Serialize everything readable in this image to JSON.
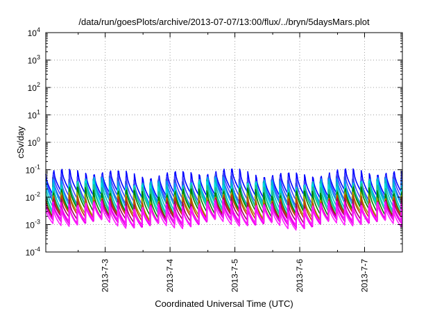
{
  "chart_data": {
    "type": "line",
    "title": "/data/run/goesPlots/archive/2013-07-07/13:00/flux/../bryn/5daysMars.plot",
    "xlabel": "Coordinated Universal Time (UTC)",
    "ylabel": "cSv/day",
    "yscale": "log",
    "ylim": [
      0.0001,
      10000
    ],
    "xlim": [
      "2013-07-02 02:00",
      "2013-07-07 14:00"
    ],
    "y_ticks": [
      {
        "value": 0.0001,
        "base": "10",
        "exp": "-4"
      },
      {
        "value": 0.001,
        "base": "10",
        "exp": "-3"
      },
      {
        "value": 0.01,
        "base": "10",
        "exp": "-2"
      },
      {
        "value": 0.1,
        "base": "10",
        "exp": "-1"
      },
      {
        "value": 1,
        "base": "10",
        "exp": "0"
      },
      {
        "value": 10,
        "base": "10",
        "exp": "1"
      },
      {
        "value": 100,
        "base": "10",
        "exp": "2"
      },
      {
        "value": 1000,
        "base": "10",
        "exp": "3"
      },
      {
        "value": 10000,
        "base": "10",
        "exp": "4"
      }
    ],
    "x_ticks": [
      {
        "value": "2013-07-03 00:00",
        "label": "2013-7-3"
      },
      {
        "value": "2013-07-04 00:00",
        "label": "2013-7-4"
      },
      {
        "value": "2013-07-05 00:00",
        "label": "2013-7-5"
      },
      {
        "value": "2013-07-06 00:00",
        "label": "2013-7-6"
      },
      {
        "value": "2013-07-07 00:00",
        "label": "2013-7-7"
      }
    ],
    "grid": true,
    "legend": "none",
    "pattern": {
      "cycle_hours": 3.0,
      "peak_values": [
        0.07,
        0.05,
        0.04,
        0.035,
        0.03,
        0.025,
        0.02,
        0.015,
        0.01,
        0.008,
        0.006,
        0.005,
        0.0045,
        0.004
      ],
      "trough_values": [
        0.012,
        0.008,
        0.006,
        0.005,
        0.004,
        0.0035,
        0.003,
        0.0025,
        0.002,
        0.0017,
        0.0014,
        0.0012,
        0.0011,
        0.001
      ]
    },
    "series": [
      {
        "color": "#0000ff"
      },
      {
        "color": "#4040ff"
      },
      {
        "color": "#3050e0"
      },
      {
        "color": "#00a0ff"
      },
      {
        "color": "#00c0c0"
      },
      {
        "color": "#00e0e0"
      },
      {
        "color": "#20c080"
      },
      {
        "color": "#008000"
      },
      {
        "color": "#a0a000"
      },
      {
        "color": "#c04000"
      },
      {
        "color": "#a00060"
      },
      {
        "color": "#ff00ff"
      },
      {
        "color": "#e000e0"
      },
      {
        "color": "#ff20ff"
      }
    ]
  }
}
